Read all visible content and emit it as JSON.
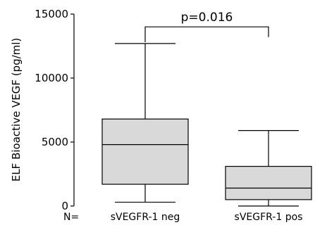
{
  "chart_data": {
    "type": "boxplot",
    "title": "",
    "ylabel": "ELF Bioactive VEGF (pg/ml)",
    "xlabel": "",
    "ylim": [
      0,
      15000
    ],
    "yticks": [
      0,
      5000,
      10000,
      15000
    ],
    "n_label": "N=",
    "categories": [
      "sVEGFR-1 neg",
      "sVEGFR-1 pos"
    ],
    "boxes": [
      {
        "category": "sVEGFR-1 neg",
        "min": 300,
        "q1": 1700,
        "median": 4800,
        "q3": 6800,
        "max": 12700
      },
      {
        "category": "sVEGFR-1 pos",
        "min": 0,
        "q1": 500,
        "median": 1400,
        "q3": 3100,
        "max": 5900
      }
    ],
    "annotation": {
      "text": "p=0.016",
      "from": 0,
      "to": 1,
      "y": 14000,
      "drop_to": [
        12800,
        13200
      ]
    },
    "colors": {
      "box_fill": "#d9d9d9",
      "stroke": "#000000"
    },
    "grid": false,
    "legend": "none"
  }
}
